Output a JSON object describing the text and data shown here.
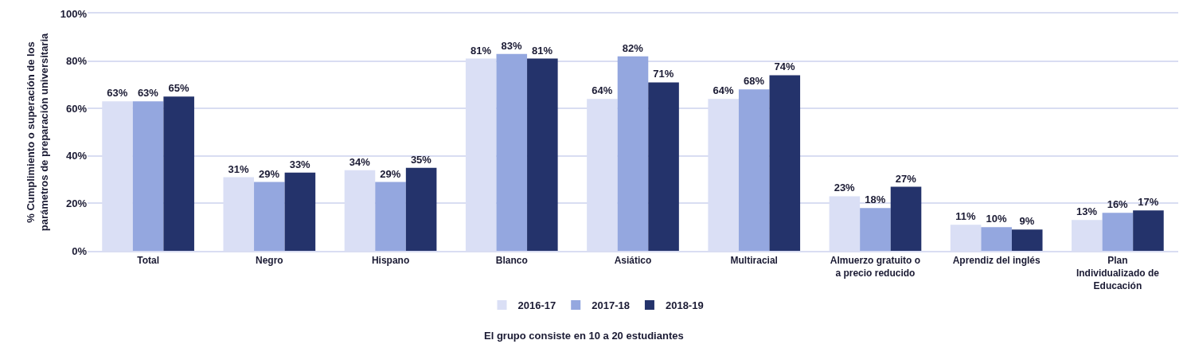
{
  "chart_data": {
    "type": "bar",
    "ylabel": "% Cumplimiento o superación de los\nparámetros de preparación universitaria",
    "categories": [
      "Total",
      "Negro",
      "Hispano",
      "Blanco",
      "Asiático",
      "Multiracial",
      "Almuerzo gratuito o\na precio reducido",
      "Aprendiz del inglés",
      "Plan\nIndividualizado de\nEducación"
    ],
    "series": [
      {
        "name": "2016-17",
        "color": "#dadff5",
        "values": [
          63,
          31,
          34,
          81,
          64,
          64,
          23,
          11,
          13
        ],
        "value_labels": [
          "63%",
          "31%",
          "34%",
          "81%",
          "64%",
          "64%",
          "23%",
          "11%",
          "13%"
        ]
      },
      {
        "name": "2017-18",
        "color": "#94a7df",
        "values": [
          63,
          29,
          29,
          83,
          82,
          68,
          18,
          10,
          16
        ],
        "value_labels": [
          "63%",
          "29%",
          "29%",
          "83%",
          "82%",
          "68%",
          "18%",
          "10%",
          "16%"
        ]
      },
      {
        "name": "2018-19",
        "color": "#24336b",
        "values": [
          65,
          33,
          35,
          81,
          71,
          74,
          27,
          9,
          17
        ],
        "value_labels": [
          "65%",
          "33%",
          "35%",
          "81%",
          "71%",
          "74%",
          "27%",
          "9%",
          "17%"
        ]
      }
    ],
    "ylim": [
      0,
      100
    ],
    "yticks": [
      {
        "value": 0,
        "label": "0%"
      },
      {
        "value": 20,
        "label": "20%"
      },
      {
        "value": 40,
        "label": "40%"
      },
      {
        "value": 60,
        "label": "60%"
      },
      {
        "value": 80,
        "label": "80%"
      },
      {
        "value": 100,
        "label": "100%"
      }
    ],
    "grid": "y",
    "legend": "bottom",
    "annotations": [
      "El grupo consiste en 10 a 20 estudiantes"
    ]
  }
}
